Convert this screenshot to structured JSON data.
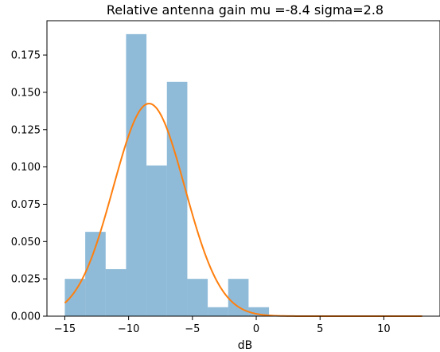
{
  "chart_data": {
    "type": "bar",
    "title": "Relative antenna gain mu =-8.4   sigma=2.8",
    "xlabel": "dB",
    "ylabel": "",
    "xlim": [
      -16.4,
      14.4
    ],
    "ylim": [
      0,
      0.198
    ],
    "xticks": [
      -15,
      -10,
      -5,
      0,
      5,
      10
    ],
    "xtick_labels": [
      "−15",
      "−10",
      "−5",
      "0",
      "5",
      "10"
    ],
    "yticks": [
      0,
      0.025,
      0.05,
      0.075,
      0.1,
      0.125,
      0.15,
      0.175
    ],
    "ytick_labels": [
      "0.000",
      "0.025",
      "0.050",
      "0.075",
      "0.100",
      "0.125",
      "0.150",
      "0.175"
    ],
    "grid": false,
    "histogram": {
      "bin_edges": [
        -15.0,
        -13.4,
        -11.8,
        -10.2,
        -8.6,
        -7.0,
        -5.4,
        -3.8,
        -2.2,
        -0.6,
        1.0
      ],
      "density": [
        0.025,
        0.0565,
        0.0315,
        0.189,
        0.101,
        0.157,
        0.025,
        0.006,
        0.025,
        0.006
      ],
      "color": "#1f77b4",
      "alpha": 0.5
    },
    "fit_curve": {
      "type": "normal-pdf",
      "mu": -8.4,
      "sigma": 2.8,
      "x_range": [
        -15,
        13
      ],
      "color": "#ff7f0e"
    }
  }
}
